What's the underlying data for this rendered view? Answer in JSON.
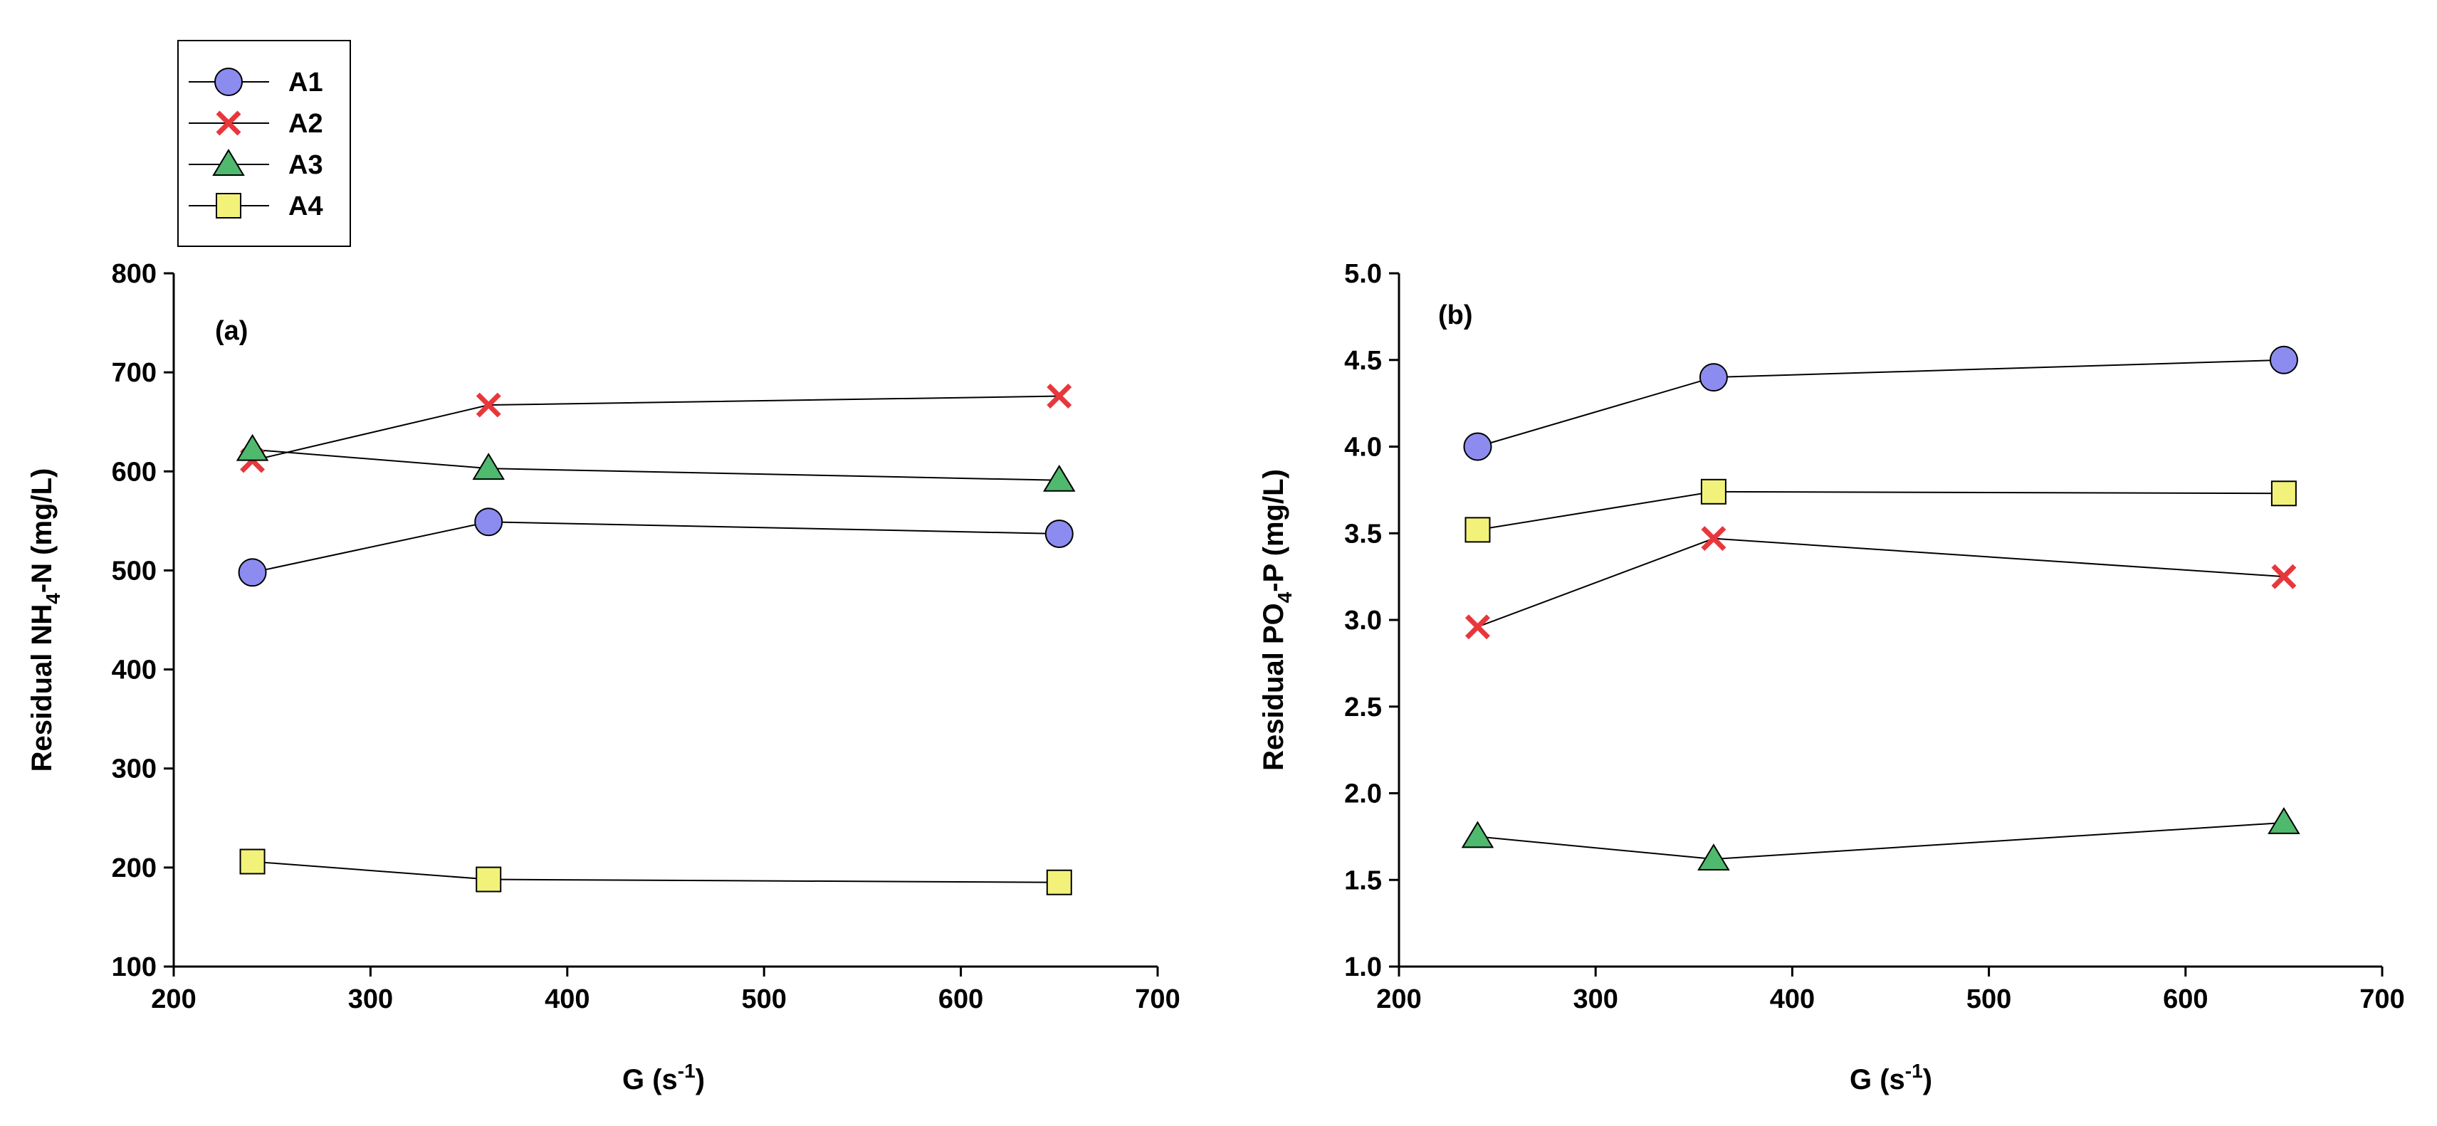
{
  "legend": {
    "entries": [
      {
        "name": "A1",
        "marker": "circle-marker",
        "color": "#8c8cf0"
      },
      {
        "name": "A2",
        "marker": "x-marker",
        "color": "#e8373c"
      },
      {
        "name": "A3",
        "marker": "triangle-marker",
        "color": "#4fb96e"
      },
      {
        "name": "A4",
        "marker": "square-marker",
        "color": "#f2f27a"
      }
    ]
  },
  "chart_data": [
    {
      "type": "line",
      "panel_label": "(a)",
      "xlabel_main": "G (s",
      "xlabel_sup": "-1",
      "xlabel_close": ")",
      "ylabel_pre": "Residual NH",
      "ylabel_sub": "4",
      "ylabel_post": "-N (mg/L)",
      "xlim": [
        200,
        700
      ],
      "ylim": [
        100,
        800
      ],
      "xticks": [
        200,
        300,
        400,
        500,
        600,
        700
      ],
      "yticks": [
        100,
        200,
        300,
        400,
        500,
        600,
        700,
        800
      ],
      "ytick_labels": [
        "100",
        "200",
        "300",
        "400",
        "500",
        "600",
        "700",
        "800"
      ],
      "x": [
        240,
        360,
        650
      ],
      "series": [
        {
          "name": "A1",
          "values": [
            498,
            549,
            537
          ]
        },
        {
          "name": "A2",
          "values": [
            611,
            667,
            676
          ]
        },
        {
          "name": "A3",
          "values": [
            622,
            603,
            591
          ]
        },
        {
          "name": "A4",
          "values": [
            206,
            188,
            185
          ]
        }
      ]
    },
    {
      "type": "line",
      "panel_label": "(b)",
      "xlabel_main": "G (s",
      "xlabel_sup": "-1",
      "xlabel_close": ")",
      "ylabel_pre": "Residual PO",
      "ylabel_sub": "4",
      "ylabel_post": "-P (mg/L)",
      "xlim": [
        200,
        700
      ],
      "ylim": [
        1.0,
        5.0
      ],
      "xticks": [
        200,
        300,
        400,
        500,
        600,
        700
      ],
      "yticks": [
        1.0,
        1.5,
        2.0,
        2.5,
        3.0,
        3.5,
        4.0,
        4.5,
        5.0
      ],
      "ytick_labels": [
        "1.0",
        "1.5",
        "2.0",
        "2.5",
        "3.0",
        "3.5",
        "4.0",
        "4.5",
        "5.0"
      ],
      "x": [
        240,
        360,
        650
      ],
      "series": [
        {
          "name": "A1",
          "values": [
            4.0,
            4.4,
            4.5
          ]
        },
        {
          "name": "A2",
          "values": [
            2.96,
            3.47,
            3.25
          ]
        },
        {
          "name": "A3",
          "values": [
            1.75,
            1.62,
            1.83
          ]
        },
        {
          "name": "A4",
          "values": [
            3.52,
            3.74,
            3.73
          ]
        }
      ]
    }
  ]
}
